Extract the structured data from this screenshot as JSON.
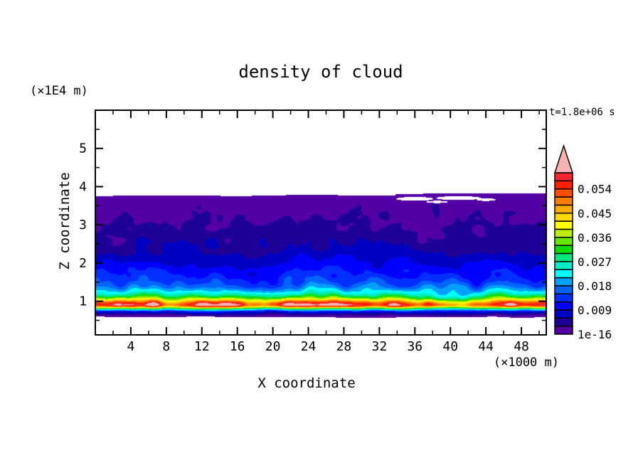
{
  "chart_data": {
    "type": "heatmap",
    "title": "density of cloud",
    "time_label": "t=1.8e+06 s",
    "xlabel": "X coordinate",
    "zlabel": "Z coordinate",
    "x_unit_label": "(×1000 m)",
    "z_unit_label": "(×1E4 m)",
    "xlim": [
      0,
      50.8
    ],
    "zlim": [
      0.12,
      6.0
    ],
    "x_major_ticks": [
      4,
      8,
      12,
      16,
      20,
      24,
      28,
      32,
      36,
      40,
      44,
      48
    ],
    "x_minor_ticks": [
      2,
      6,
      10,
      14,
      18,
      22,
      26,
      30,
      34,
      38,
      42,
      46,
      50
    ],
    "z_major_ticks": [
      1,
      2,
      3,
      4,
      5
    ],
    "z_minor_ticks": [
      0.5,
      1.5,
      2.5,
      3.5,
      4.5,
      5.5
    ],
    "colorbar": {
      "max_value": 0.06,
      "level_step": 0.003,
      "labels": [
        {
          "text": "0.054",
          "value": 0.054
        },
        {
          "text": "0.045",
          "value": 0.045
        },
        {
          "text": "0.036",
          "value": 0.036
        },
        {
          "text": "0.027",
          "value": 0.027
        },
        {
          "text": "0.018",
          "value": 0.018
        },
        {
          "text": "0.009",
          "value": 0.009
        },
        {
          "text": "1e-16",
          "value": 0.0
        }
      ],
      "colors": [
        "#5200a4",
        "#1e0096",
        "#0000c3",
        "#0000ff",
        "#0030ff",
        "#0064ff",
        "#00a0ff",
        "#00ffff",
        "#00eec8",
        "#00e87d",
        "#0ddc00",
        "#66e600",
        "#c0ee00",
        "#ffff00",
        "#ffd700",
        "#ffaa00",
        "#ff7d00",
        "#ff4e00",
        "#ff2000",
        "#f8282e"
      ],
      "overflow_color": "#f8b2b2"
    },
    "field": {
      "cloud_top_z": 3.77,
      "top_step_x": 33.8,
      "top_step_dz": 0.04,
      "cloud_base_z": 0.585,
      "peak_z": 0.9,
      "peak_density": 0.058,
      "profile": [
        [
          3.77,
          0.0004
        ],
        [
          3.05,
          0.003
        ],
        [
          2.3,
          0.006
        ],
        [
          1.95,
          0.009
        ],
        [
          1.72,
          0.012
        ],
        [
          1.52,
          0.015
        ],
        [
          1.38,
          0.018
        ],
        [
          1.26,
          0.022
        ],
        [
          1.16,
          0.027
        ],
        [
          1.08,
          0.034
        ],
        [
          1.02,
          0.043
        ],
        [
          0.96,
          0.053
        ],
        [
          0.9,
          0.058
        ],
        [
          0.86,
          0.048
        ],
        [
          0.82,
          0.034
        ],
        [
          0.78,
          0.022
        ],
        [
          0.74,
          0.013
        ],
        [
          0.7,
          0.007
        ],
        [
          0.65,
          0.0035
        ],
        [
          0.585,
          0.0008
        ]
      ],
      "noise": {
        "seed": 7,
        "mul_amp": 0.35,
        "mul_fx": 0.35,
        "mul_fz": 2.0,
        "add_amp": 0.002,
        "add_fx": 0.6,
        "add_fz": 3.1,
        "edge_amp": 0.05,
        "edge_fx": 0.12,
        "base_amp": 0.035,
        "base_fx": 0.25
      },
      "holes": [
        {
          "cx": 36.0,
          "cz": 3.68,
          "rx": 2.1,
          "rz": 0.05
        },
        {
          "cx": 40.9,
          "cz": 3.7,
          "rx": 2.5,
          "rz": 0.05
        },
        {
          "cx": 44.0,
          "cz": 3.66,
          "rx": 1.1,
          "rz": 0.035
        },
        {
          "cx": 38.5,
          "cz": 3.6,
          "rx": 1.2,
          "rz": 0.03
        }
      ]
    }
  }
}
